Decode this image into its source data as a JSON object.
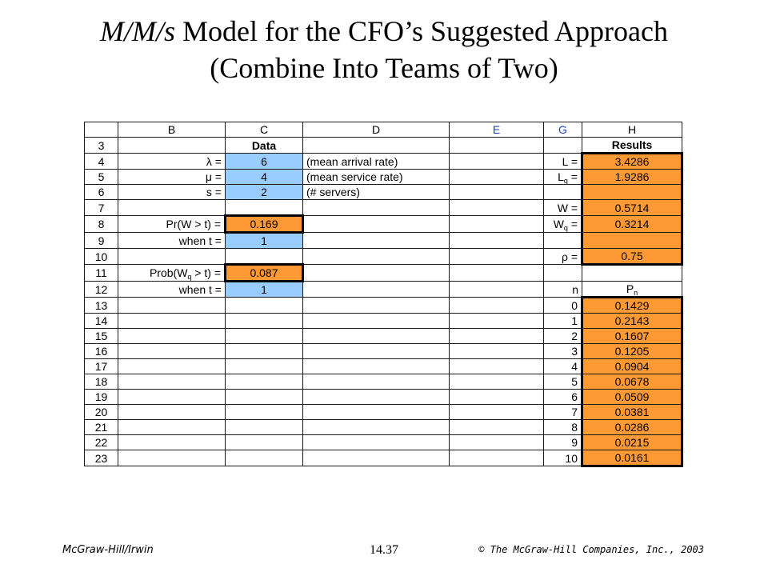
{
  "title": {
    "model": "M/M/s",
    "line1_rest": " Model for the CFO’s Suggested Approach",
    "line2": "(Combine Into Teams of Two)"
  },
  "sheet": {
    "col_headers": [
      "B",
      "C",
      "D",
      "E",
      "G",
      "H"
    ],
    "row_numbers": [
      "3",
      "4",
      "5",
      "6",
      "7",
      "8",
      "9",
      "10",
      "11",
      "12",
      "13",
      "14",
      "15",
      "16",
      "17",
      "18",
      "19",
      "20",
      "21",
      "22",
      "23"
    ],
    "data_header": "Data",
    "results_header": "Results",
    "inputs": {
      "lambda_label": "λ =",
      "lambda_value": "6",
      "lambda_desc": "(mean arrival rate)",
      "mu_label": "μ =",
      "mu_value": "4",
      "mu_desc": "(mean service rate)",
      "s_label": "s =",
      "s_value": "2",
      "s_desc": "(# servers)"
    },
    "prob_w": {
      "label": "Pr(W > t) =",
      "value": "0.169",
      "t_label": "when t =",
      "t_value": "1"
    },
    "prob_wq": {
      "label_a": "Prob(W",
      "label_sub": "q",
      "label_b": " > t) =",
      "value": "0.087",
      "t_label": "when t =",
      "t_value": "1"
    },
    "results": {
      "L_label": "L =",
      "L_value": "3.4286",
      "Lq_label": "L",
      "Lq_sub": "q",
      "Lq_eq": " =",
      "Lq_value": "1.9286",
      "W_label": "W =",
      "W_value": "0.5714",
      "Wq_label": "W",
      "Wq_sub": "q",
      "Wq_eq": " =",
      "Wq_value": "0.3214",
      "rho_label": "ρ =",
      "rho_value": "0.75",
      "n_label": "n",
      "Pn_label": "P",
      "Pn_sub": "n"
    },
    "pn_rows": [
      {
        "n": "0",
        "p": "0.1429"
      },
      {
        "n": "1",
        "p": "0.2143"
      },
      {
        "n": "2",
        "p": "0.1607"
      },
      {
        "n": "3",
        "p": "0.1205"
      },
      {
        "n": "4",
        "p": "0.0904"
      },
      {
        "n": "5",
        "p": "0.0678"
      },
      {
        "n": "6",
        "p": "0.0509"
      },
      {
        "n": "7",
        "p": "0.0381"
      },
      {
        "n": "8",
        "p": "0.0286"
      },
      {
        "n": "9",
        "p": "0.0215"
      },
      {
        "n": "10",
        "p": "0.0161"
      }
    ],
    "colors": {
      "input_fill": "#99ccff",
      "output_fill": "#ff9933",
      "header_blue": "#1f3fd8"
    }
  },
  "footer": {
    "publisher": "McGraw-Hill/Irwin",
    "slide_number": "14.37",
    "copyright": "© The McGraw-Hill Companies, Inc., 2003"
  }
}
